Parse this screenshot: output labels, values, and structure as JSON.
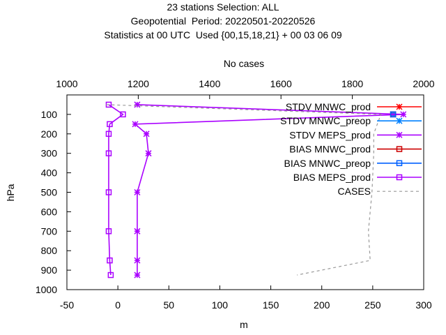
{
  "titles": {
    "line1": "23 stations Selection: ALL",
    "line2": "Geopotential  Period: 20220501-20220526",
    "line3": "Statistics at 00 UTC  Used {00,15,18,21} + 00 03 06 09"
  },
  "chart_data": {
    "type": "line",
    "xlabel": "m",
    "ylabel": "hPa",
    "x2label": "No cases",
    "xlim": [
      -50,
      300
    ],
    "ylim": [
      1000,
      0
    ],
    "x2lim": [
      1000,
      2000
    ],
    "xticks": [
      -50,
      0,
      50,
      100,
      150,
      200,
      250,
      300
    ],
    "yticks": [
      100,
      200,
      300,
      400,
      500,
      600,
      700,
      800,
      900,
      1000
    ],
    "x2ticks": [
      1000,
      1200,
      1400,
      1600,
      1800,
      2000
    ],
    "grid": false,
    "legend_position": "top-right",
    "levels": [
      50,
      100,
      150,
      200,
      300,
      500,
      700,
      850,
      925
    ],
    "series": [
      {
        "name": "STDV MNWC_prod",
        "color": "#ff0000",
        "marker": "x",
        "axis": "x",
        "values": [
          null,
          270,
          null,
          null,
          null,
          null,
          null,
          null,
          null
        ]
      },
      {
        "name": "STDV MNWC_preop",
        "color": "#0080ff",
        "marker": "x",
        "axis": "x",
        "values": [
          null,
          270,
          null,
          null,
          null,
          null,
          null,
          null,
          null
        ]
      },
      {
        "name": "STDV MEPS_prod",
        "color": "#aa00ff",
        "marker": "x",
        "axis": "x",
        "values": [
          19,
          280,
          17,
          28,
          30,
          19,
          19,
          19,
          19
        ]
      },
      {
        "name": "BIAS MNWC_prod",
        "color": "#cc0000",
        "marker": "square",
        "axis": "x",
        "values": [
          null,
          270,
          null,
          null,
          null,
          null,
          null,
          null,
          null
        ]
      },
      {
        "name": "BIAS MNWC_preop",
        "color": "#0060ff",
        "marker": "square",
        "axis": "x",
        "values": [
          null,
          270,
          null,
          null,
          null,
          null,
          null,
          null,
          null
        ]
      },
      {
        "name": "BIAS MEPS_prod",
        "color": "#aa00ff",
        "marker": "square",
        "axis": "x",
        "values": [
          -9,
          5,
          -8,
          -9,
          -9,
          -9,
          -9,
          -8,
          -7
        ]
      },
      {
        "name": "CASES",
        "color": "#999999",
        "marker": "none",
        "axis": "x2",
        "values": [
          1110,
          1880,
          1870,
          1860,
          1860,
          1855,
          1845,
          1850,
          1645
        ]
      }
    ]
  }
}
